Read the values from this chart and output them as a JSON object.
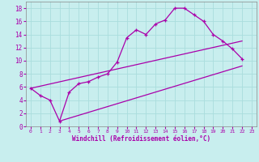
{
  "title": "",
  "xlabel": "Windchill (Refroidissement éolien,°C)",
  "bg_color": "#c8eeee",
  "grid_color": "#aadddd",
  "line_color": "#aa00aa",
  "spine_color": "#888888",
  "xlim": [
    -0.5,
    23.5
  ],
  "ylim": [
    0,
    19
  ],
  "xticks": [
    0,
    1,
    2,
    3,
    4,
    5,
    6,
    7,
    8,
    9,
    10,
    11,
    12,
    13,
    14,
    15,
    16,
    17,
    18,
    19,
    20,
    21,
    22,
    23
  ],
  "yticks": [
    0,
    2,
    4,
    6,
    8,
    10,
    12,
    14,
    16,
    18
  ],
  "line1_x": [
    0,
    1,
    2,
    3,
    4,
    5,
    6,
    7,
    8,
    9,
    10,
    11,
    12,
    13,
    14,
    15,
    16,
    17,
    18,
    19,
    20,
    21,
    22
  ],
  "line1_y": [
    5.8,
    4.7,
    4.0,
    0.8,
    5.2,
    6.5,
    6.8,
    7.5,
    8.0,
    9.8,
    13.5,
    14.7,
    14.0,
    15.6,
    16.2,
    18.0,
    18.0,
    17.0,
    16.0,
    14.0,
    13.0,
    11.8,
    10.3
  ],
  "line2_x": [
    0,
    22
  ],
  "line2_y": [
    5.8,
    13.0
  ],
  "line3_x": [
    3,
    22
  ],
  "line3_y": [
    0.8,
    9.2
  ],
  "xlabel_fontsize": 5.5,
  "tick_fontsize_x": 4.5,
  "tick_fontsize_y": 5.5
}
